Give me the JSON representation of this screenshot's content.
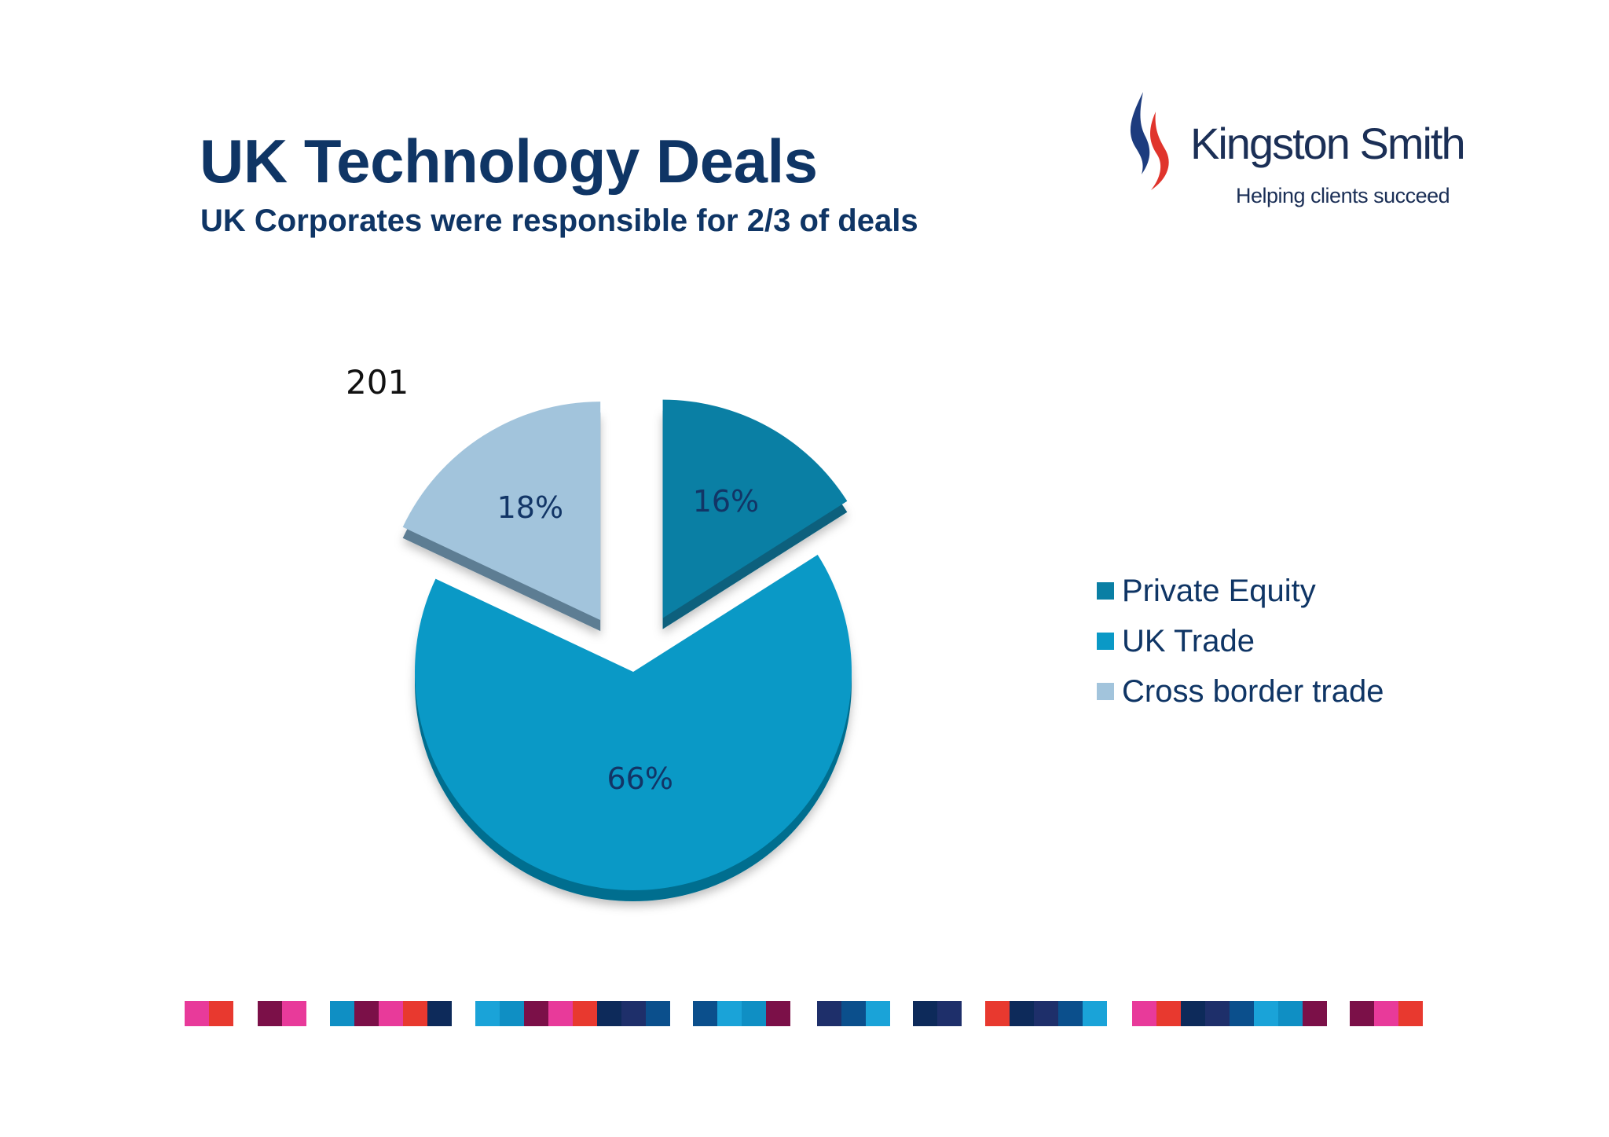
{
  "slide": {
    "title": "UK Technology Deals",
    "subtitle": "UK Corporates were responsible for 2/3 of deals"
  },
  "logo": {
    "name": "Kingston Smith",
    "tagline": "Helping clients succeed",
    "colors": {
      "blue": "#1d3c7e",
      "red": "#e0342c",
      "text": "#1b2f56"
    }
  },
  "chart_data": {
    "type": "pie",
    "title": "",
    "label": "201",
    "slices": [
      {
        "name": "Private Equity",
        "value": 16,
        "label": "16%",
        "color": "#0a7fa4",
        "side": "#07607d"
      },
      {
        "name": "UK Trade",
        "value": 66,
        "label": "66%",
        "color": "#0a99c6",
        "side": "#066e8f"
      },
      {
        "name": "Cross border trade",
        "value": 18,
        "label": "18%",
        "color": "#a2c4dc",
        "side": "#5d7d93"
      }
    ],
    "legend_position": "right"
  },
  "footer_colors": [
    "#e83a9a",
    "#1aa3d8",
    "#0d2a5a",
    "#7b1048",
    "#0b4f8c",
    "#e8392f",
    "#0f8fc4",
    "#1e2f6a"
  ]
}
